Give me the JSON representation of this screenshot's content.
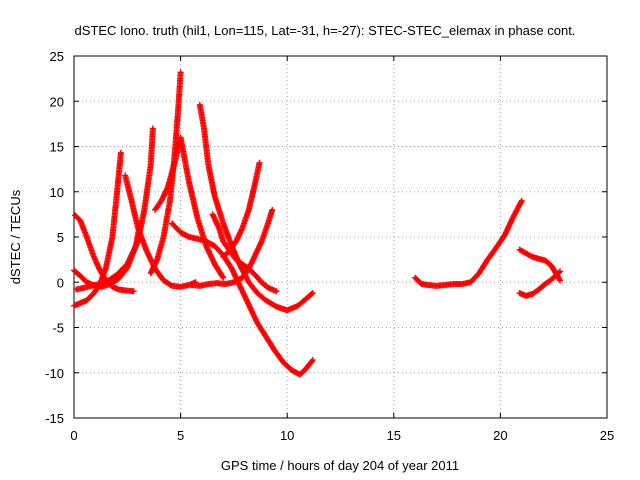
{
  "chart_data": {
    "type": "scatter",
    "title": "dSTEC Iono. truth (hil1, Lon=115, Lat=-31, h=-27): STEC-STEC_elemax in phase cont.",
    "xlabel": "GPS time / hours of day 204 of year 2011",
    "ylabel": "dSTEC  / TECUs",
    "xlim": [
      0,
      25
    ],
    "ylim": [
      -15,
      25
    ],
    "xticks": [
      0,
      5,
      10,
      15,
      20,
      25
    ],
    "yticks": [
      -15,
      -10,
      -5,
      0,
      5,
      10,
      15,
      20,
      25
    ],
    "grid": true,
    "marker": "plus",
    "color": "#ff0000",
    "series": [
      {
        "x": [
          0.0,
          0.3,
          0.6,
          0.9,
          1.2,
          1.5,
          1.8,
          2.0,
          2.2
        ],
        "y": [
          -2.6,
          -2.3,
          -2.0,
          -1.3,
          -0.3,
          1.6,
          5.0,
          9.5,
          14.3
        ]
      },
      {
        "x": [
          0.05,
          0.3,
          0.6,
          0.9,
          1.2,
          1.5,
          1.8,
          2.1,
          2.4,
          2.8
        ],
        "y": [
          7.4,
          6.8,
          5.0,
          3.0,
          1.4,
          0.2,
          -0.5,
          -0.8,
          -0.9,
          -1.0
        ]
      },
      {
        "x": [
          0.0,
          0.3,
          0.6,
          0.9,
          1.3,
          1.7,
          2.1,
          2.5,
          2.9,
          3.1
        ],
        "y": [
          1.3,
          0.7,
          0.0,
          -0.3,
          -0.5,
          -0.2,
          0.4,
          1.6,
          4.0,
          6.5
        ]
      },
      {
        "x": [
          0.1,
          0.5,
          1.0,
          1.5,
          2.0,
          2.5,
          3.0,
          3.3,
          3.6,
          3.7
        ],
        "y": [
          -0.8,
          -0.6,
          -0.3,
          0.0,
          0.8,
          2.0,
          4.5,
          8.0,
          13.0,
          17.0
        ]
      },
      {
        "x": [
          2.4,
          2.7,
          3.0,
          3.4,
          3.8,
          4.2,
          4.6,
          5.0,
          5.4,
          5.7
        ],
        "y": [
          11.8,
          9.0,
          6.0,
          3.5,
          1.5,
          0.2,
          -0.4,
          -0.5,
          -0.3,
          0.0
        ]
      },
      {
        "x": [
          3.6,
          3.9,
          4.2,
          4.5,
          4.7,
          4.9,
          5.0
        ],
        "y": [
          1.0,
          2.5,
          5.0,
          9.0,
          13.5,
          19.5,
          23.2
        ]
      },
      {
        "x": [
          3.8,
          4.1,
          4.4,
          4.7,
          5.0,
          5.4,
          5.8,
          6.2,
          6.6,
          7.0
        ],
        "y": [
          8.0,
          9.0,
          10.5,
          13.0,
          16.0,
          11.0,
          7.0,
          4.0,
          2.0,
          0.5
        ]
      },
      {
        "x": [
          5.9,
          6.1,
          6.3,
          6.6,
          7.0,
          7.4,
          7.8,
          8.2,
          8.6,
          9.0,
          9.5,
          10.0,
          10.5,
          10.9,
          11.2
        ],
        "y": [
          19.6,
          17.0,
          13.0,
          9.5,
          6.5,
          4.0,
          1.8,
          0.0,
          -1.2,
          -2.0,
          -2.7,
          -3.1,
          -2.6,
          -1.8,
          -1.2
        ]
      },
      {
        "x": [
          4.6,
          5.0,
          5.4,
          5.8,
          6.2,
          6.6,
          7.0,
          7.4,
          7.8,
          8.2,
          8.6,
          9.0,
          9.4,
          9.8,
          10.2,
          10.6,
          10.9,
          11.2
        ],
        "y": [
          6.5,
          5.5,
          5.0,
          4.8,
          4.5,
          4.0,
          3.0,
          1.5,
          -0.5,
          -2.5,
          -4.5,
          -6.0,
          -7.5,
          -8.8,
          -9.7,
          -10.2,
          -9.5,
          -8.6
        ]
      },
      {
        "x": [
          5.5,
          5.9,
          6.3,
          6.7,
          7.1,
          7.5,
          7.9,
          8.2,
          8.5,
          8.8,
          9.1,
          9.3
        ],
        "y": [
          -0.3,
          -0.4,
          -0.2,
          -0.1,
          -0.2,
          0.0,
          0.5,
          1.5,
          3.0,
          4.5,
          6.5,
          8.0
        ]
      },
      {
        "x": [
          6.5,
          6.8,
          7.0,
          7.3,
          7.6,
          7.9,
          8.2,
          8.5,
          8.8,
          9.1,
          9.5
        ],
        "y": [
          7.5,
          6.0,
          4.5,
          3.5,
          2.5,
          2.0,
          1.5,
          0.8,
          0.0,
          -0.6,
          -1.0
        ]
      },
      {
        "x": [
          7.0,
          7.3,
          7.6,
          7.9,
          8.2,
          8.5,
          8.7
        ],
        "y": [
          2.8,
          3.5,
          4.5,
          6.0,
          8.0,
          11.0,
          13.2
        ]
      },
      {
        "x": [
          16.0,
          16.3,
          16.6,
          17.0,
          17.4,
          17.8,
          18.2,
          18.6,
          19.0,
          19.4,
          19.8,
          20.2,
          20.6,
          21.0
        ],
        "y": [
          0.5,
          -0.2,
          -0.3,
          -0.4,
          -0.3,
          -0.2,
          -0.2,
          0.0,
          1.0,
          2.5,
          3.8,
          5.2,
          7.2,
          9.0
        ]
      },
      {
        "x": [
          20.9,
          21.2,
          21.5,
          21.8,
          22.1,
          22.4,
          22.8
        ],
        "y": [
          -1.2,
          -1.5,
          -1.3,
          -0.8,
          -0.2,
          0.3,
          1.2
        ]
      },
      {
        "x": [
          20.9,
          21.2,
          21.5,
          21.8,
          22.1,
          22.4,
          22.6,
          22.8
        ],
        "y": [
          3.6,
          3.2,
          2.8,
          2.6,
          2.4,
          1.8,
          1.0,
          0.2
        ]
      }
    ]
  }
}
